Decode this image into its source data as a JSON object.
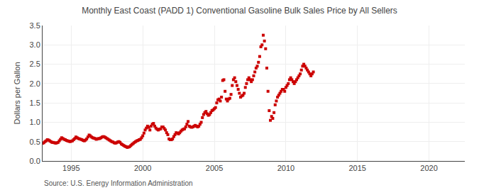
{
  "chart_data": {
    "type": "scatter",
    "title": "Monthly East Coast (PADD 1) Conventional Gasoline Bulk Sales Price by All Sellers",
    "ylabel": "Dollars per Gallon",
    "annotations": [
      "Source: U.S. Energy Information Administration"
    ],
    "color": "#CC0000",
    "marker": "square",
    "grid": true,
    "xlim": [
      1993.0,
      2022.5
    ],
    "ylim": [
      0.0,
      3.5
    ],
    "xticks": [
      1995,
      2000,
      2005,
      2010,
      2015,
      2020
    ],
    "yticks": [
      {
        "value": 0.0,
        "label": "0.0"
      },
      0.5,
      {
        "value": 1.0,
        "label": "1.0"
      },
      1.5,
      {
        "value": 2.0,
        "label": "2.0"
      },
      2.5,
      {
        "value": 3.0,
        "label": "3.0"
      },
      3.5
    ],
    "x": [
      1993.0,
      1993.083,
      1993.167,
      1993.25,
      1993.333,
      1993.417,
      1993.5,
      1993.583,
      1993.667,
      1993.75,
      1993.833,
      1993.917,
      1994.0,
      1994.083,
      1994.167,
      1994.25,
      1994.333,
      1994.417,
      1994.5,
      1994.583,
      1994.667,
      1994.75,
      1994.833,
      1994.917,
      1995.0,
      1995.083,
      1995.167,
      1995.25,
      1995.333,
      1995.417,
      1995.5,
      1995.583,
      1995.667,
      1995.75,
      1995.833,
      1995.917,
      1996.0,
      1996.083,
      1996.167,
      1996.25,
      1996.333,
      1996.417,
      1996.5,
      1996.583,
      1996.667,
      1996.75,
      1996.833,
      1996.917,
      1997.0,
      1997.083,
      1997.167,
      1997.25,
      1997.333,
      1997.417,
      1997.5,
      1997.583,
      1997.667,
      1997.75,
      1997.833,
      1997.917,
      1998.0,
      1998.083,
      1998.167,
      1998.25,
      1998.333,
      1998.417,
      1998.5,
      1998.583,
      1998.667,
      1998.75,
      1998.833,
      1998.917,
      1999.0,
      1999.083,
      1999.167,
      1999.25,
      1999.333,
      1999.417,
      1999.5,
      1999.583,
      1999.667,
      1999.75,
      1999.833,
      1999.917,
      2000.0,
      2000.083,
      2000.167,
      2000.25,
      2000.333,
      2000.417,
      2000.5,
      2000.583,
      2000.667,
      2000.75,
      2000.833,
      2000.917,
      2001.0,
      2001.083,
      2001.167,
      2001.25,
      2001.333,
      2001.417,
      2001.5,
      2001.583,
      2001.667,
      2001.75,
      2001.833,
      2001.917,
      2002.0,
      2002.083,
      2002.167,
      2002.25,
      2002.333,
      2002.417,
      2002.5,
      2002.583,
      2002.667,
      2002.75,
      2002.833,
      2002.917,
      2003.0,
      2003.083,
      2003.167,
      2003.25,
      2003.333,
      2003.417,
      2003.5,
      2003.583,
      2003.667,
      2003.75,
      2003.833,
      2003.917,
      2004.0,
      2004.083,
      2004.167,
      2004.25,
      2004.333,
      2004.417,
      2004.5,
      2004.583,
      2004.667,
      2004.75,
      2004.833,
      2004.917,
      2005.0,
      2005.083,
      2005.167,
      2005.25,
      2005.333,
      2005.417,
      2005.5,
      2005.583,
      2005.667,
      2005.75,
      2005.833,
      2005.917,
      2006.0,
      2006.083,
      2006.167,
      2006.25,
      2006.333,
      2006.417,
      2006.5,
      2006.583,
      2006.667,
      2006.75,
      2006.833,
      2006.917,
      2007.0,
      2007.083,
      2007.167,
      2007.25,
      2007.333,
      2007.417,
      2007.5,
      2007.583,
      2007.667,
      2007.75,
      2007.833,
      2007.917,
      2008.0,
      2008.083,
      2008.167,
      2008.25,
      2008.333,
      2008.417,
      2008.5,
      2008.583,
      2008.667,
      2008.75,
      2008.833,
      2008.917,
      2009.0,
      2009.083,
      2009.167,
      2009.25,
      2009.333,
      2009.417,
      2009.5,
      2009.583,
      2009.667,
      2009.75,
      2009.833,
      2009.917,
      2010.0,
      2010.083,
      2010.167,
      2010.25,
      2010.333,
      2010.417,
      2010.5,
      2010.583,
      2010.667,
      2010.75,
      2010.833,
      2010.917,
      2011.0,
      2011.083,
      2011.167,
      2011.25,
      2011.333,
      2011.417,
      2011.5,
      2011.583,
      2011.667,
      2011.75,
      2011.833,
      2011.917
    ],
    "values": [
      0.46,
      0.47,
      0.5,
      0.52,
      0.55,
      0.54,
      0.52,
      0.5,
      0.48,
      0.48,
      0.47,
      0.46,
      0.47,
      0.48,
      0.52,
      0.56,
      0.6,
      0.58,
      0.56,
      0.55,
      0.53,
      0.52,
      0.51,
      0.5,
      0.51,
      0.52,
      0.55,
      0.58,
      0.62,
      0.6,
      0.58,
      0.57,
      0.56,
      0.55,
      0.53,
      0.52,
      0.54,
      0.57,
      0.62,
      0.67,
      0.65,
      0.62,
      0.6,
      0.59,
      0.58,
      0.56,
      0.57,
      0.58,
      0.58,
      0.6,
      0.62,
      0.63,
      0.62,
      0.6,
      0.58,
      0.56,
      0.54,
      0.52,
      0.5,
      0.49,
      0.47,
      0.46,
      0.47,
      0.49,
      0.5,
      0.48,
      0.44,
      0.42,
      0.4,
      0.38,
      0.37,
      0.35,
      0.36,
      0.37,
      0.4,
      0.43,
      0.45,
      0.48,
      0.5,
      0.52,
      0.53,
      0.55,
      0.56,
      0.6,
      0.65,
      0.72,
      0.8,
      0.85,
      0.9,
      0.87,
      0.8,
      0.9,
      0.95,
      0.97,
      0.9,
      0.85,
      0.82,
      0.8,
      0.82,
      0.83,
      0.88,
      0.88,
      0.84,
      0.8,
      0.73,
      0.68,
      0.57,
      0.55,
      0.55,
      0.57,
      0.63,
      0.68,
      0.73,
      0.72,
      0.7,
      0.73,
      0.77,
      0.8,
      0.82,
      0.83,
      0.88,
      0.95,
      1.02,
      0.9,
      0.88,
      0.87,
      0.88,
      0.9,
      0.92,
      0.9,
      0.88,
      0.9,
      0.95,
      1.0,
      1.12,
      1.2,
      1.25,
      1.28,
      1.22,
      1.18,
      1.2,
      1.25,
      1.3,
      1.32,
      1.35,
      1.38,
      1.5,
      1.58,
      1.6,
      1.55,
      1.65,
      2.08,
      2.1,
      1.8,
      1.6,
      1.55,
      1.6,
      1.62,
      1.72,
      1.95,
      2.1,
      2.15,
      2.05,
      1.95,
      1.85,
      1.75,
      1.65,
      1.68,
      1.7,
      1.75,
      1.9,
      2.0,
      2.1,
      2.15,
      2.1,
      2.05,
      2.1,
      2.2,
      2.3,
      2.4,
      2.45,
      2.55,
      2.7,
      2.95,
      3.0,
      3.25,
      3.1,
      2.9,
      2.4,
      1.8,
      1.3,
      1.05,
      1.15,
      1.1,
      1.25,
      1.45,
      1.55,
      1.65,
      1.7,
      1.75,
      1.8,
      1.85,
      1.85,
      1.8,
      1.9,
      1.95,
      2.0,
      2.1,
      2.15,
      2.1,
      2.05,
      2.0,
      2.05,
      2.1,
      2.15,
      2.2,
      2.25,
      2.35,
      2.45,
      2.5,
      2.45,
      2.4,
      2.35,
      2.3,
      2.25,
      2.2,
      2.25,
      2.3
    ]
  }
}
